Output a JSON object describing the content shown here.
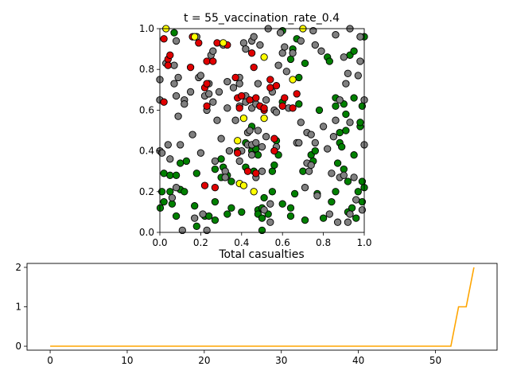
{
  "chart_data": [
    {
      "type": "scatter",
      "title": "t = 55_vaccination_rate_0.4",
      "xlim": [
        0,
        1
      ],
      "ylim": [
        0,
        1
      ],
      "x_ticks": [
        "0.0",
        "0.2",
        "0.4",
        "0.6",
        "0.8",
        "1.0"
      ],
      "y_ticks": [
        "0.0",
        "0.2",
        "0.4",
        "0.6",
        "0.8",
        "1.0"
      ],
      "grid": false,
      "colors": {
        "green": "#008000",
        "gray": "#808080",
        "red": "#e00000",
        "yellow": "#ffff00"
      },
      "points": {
        "green": [
          [
            0.002,
            0.12
          ],
          [
            0.01,
            0.2
          ],
          [
            0.02,
            0.15
          ],
          [
            0.02,
            0.29
          ],
          [
            0.05,
            0.2
          ],
          [
            0.06,
            0.14
          ],
          [
            0.05,
            0.28
          ],
          [
            0.08,
            0.28
          ],
          [
            0.08,
            0.08
          ],
          [
            0.1,
            0.34
          ],
          [
            0.1,
            0.21
          ],
          [
            0.12,
            0.2
          ],
          [
            0.13,
            0.35
          ],
          [
            0.17,
            0.13
          ],
          [
            0.18,
            0.29
          ],
          [
            0.18,
            0.03
          ],
          [
            0.22,
            0.08
          ],
          [
            0.24,
            0.08
          ],
          [
            0.27,
            0.15
          ],
          [
            0.27,
            0.31
          ],
          [
            0.27,
            0.06
          ],
          [
            0.3,
            0.36
          ],
          [
            0.3,
            0.27
          ],
          [
            0.31,
            0.32
          ],
          [
            0.33,
            0.28
          ],
          [
            0.33,
            0.09
          ],
          [
            0.35,
            0.25
          ],
          [
            0.35,
            0.12
          ],
          [
            0.38,
            0.4
          ],
          [
            0.4,
            0.1
          ],
          [
            0.42,
            0.44
          ],
          [
            0.42,
            0.32
          ],
          [
            0.45,
            0.52
          ],
          [
            0.45,
            0.4
          ],
          [
            0.46,
            0.3
          ],
          [
            0.47,
            0.41
          ],
          [
            0.48,
            0.11
          ],
          [
            0.48,
            0.09
          ],
          [
            0.48,
            0.38
          ],
          [
            0.5,
            0.07
          ],
          [
            0.5,
            0.12
          ],
          [
            0.5,
            0.01
          ],
          [
            0.51,
            0.17
          ],
          [
            0.53,
            0.09
          ],
          [
            0.55,
            0.2
          ],
          [
            0.55,
            0.3
          ],
          [
            0.56,
            0.33
          ],
          [
            0.57,
            0.45
          ],
          [
            0.58,
            0.38
          ],
          [
            0.6,
            0.64
          ],
          [
            0.6,
            0.99
          ],
          [
            0.6,
            0.14
          ],
          [
            0.64,
            0.08
          ],
          [
            0.64,
            0.12
          ],
          [
            0.64,
            0.85
          ],
          [
            0.65,
            0.9
          ],
          [
            0.66,
            0.19
          ],
          [
            0.67,
            0.95
          ],
          [
            0.68,
            0.63
          ],
          [
            0.68,
            0.76
          ],
          [
            0.7,
            0.3
          ],
          [
            0.71,
            0.06
          ],
          [
            0.71,
            0.83
          ],
          [
            0.74,
            0.38
          ],
          [
            0.75,
            0.35
          ],
          [
            0.76,
            0.4
          ],
          [
            0.77,
            0.19
          ],
          [
            0.78,
            0.6
          ],
          [
            0.8,
            0.07
          ],
          [
            0.82,
            0.86
          ],
          [
            0.83,
            0.84
          ],
          [
            0.84,
            0.15
          ],
          [
            0.86,
            0.66
          ],
          [
            0.86,
            0.62
          ],
          [
            0.86,
            0.2
          ],
          [
            0.87,
            0.34
          ],
          [
            0.88,
            0.44
          ],
          [
            0.88,
            0.49
          ],
          [
            0.89,
            0.42
          ],
          [
            0.9,
            0.31
          ],
          [
            0.9,
            0.63
          ],
          [
            0.91,
            0.58
          ],
          [
            0.91,
            0.5
          ],
          [
            0.92,
            0.25
          ],
          [
            0.92,
            0.1
          ],
          [
            0.93,
            0.87
          ],
          [
            0.94,
            0.12
          ],
          [
            0.95,
            0.66
          ],
          [
            0.95,
            0.38
          ],
          [
            0.95,
            0.89
          ],
          [
            0.96,
            0.07
          ],
          [
            0.97,
            0.2
          ],
          [
            0.98,
            0.52
          ],
          [
            0.98,
            0.54
          ],
          [
            0.99,
            0.15
          ],
          [
            0.99,
            0.62
          ],
          [
            0.99,
            0.25
          ],
          [
            1.0,
            0.22
          ],
          [
            1.0,
            0.96
          ],
          [
            0.07,
            0.98
          ]
        ],
        "gray": [
          [
            0.0,
            0.75
          ],
          [
            0.0,
            0.4
          ],
          [
            0.0,
            0.65
          ],
          [
            0.01,
            0.39
          ],
          [
            0.03,
            0.83
          ],
          [
            0.04,
            0.43
          ],
          [
            0.05,
            0.36
          ],
          [
            0.06,
            0.17
          ],
          [
            0.07,
            0.73
          ],
          [
            0.07,
            0.82
          ],
          [
            0.08,
            0.94
          ],
          [
            0.08,
            0.67
          ],
          [
            0.08,
            0.22
          ],
          [
            0.09,
            0.76
          ],
          [
            0.09,
            0.57
          ],
          [
            0.1,
            0.43
          ],
          [
            0.11,
            0.01
          ],
          [
            0.12,
            0.65
          ],
          [
            0.12,
            0.63
          ],
          [
            0.15,
            0.69
          ],
          [
            0.16,
            0.48
          ],
          [
            0.17,
            0.07
          ],
          [
            0.18,
            0.96
          ],
          [
            0.19,
            0.76
          ],
          [
            0.2,
            0.77
          ],
          [
            0.2,
            0.39
          ],
          [
            0.21,
            0.09
          ],
          [
            0.22,
            0.67
          ],
          [
            0.23,
            0.01
          ],
          [
            0.23,
            0.6
          ],
          [
            0.24,
            0.68
          ],
          [
            0.24,
            0.73
          ],
          [
            0.25,
            0.87
          ],
          [
            0.26,
            0.89
          ],
          [
            0.26,
            0.64
          ],
          [
            0.27,
            0.35
          ],
          [
            0.28,
            0.55
          ],
          [
            0.29,
            0.69
          ],
          [
            0.3,
            0.46
          ],
          [
            0.31,
            0.92
          ],
          [
            0.32,
            0.3
          ],
          [
            0.32,
            0.27
          ],
          [
            0.33,
            0.74
          ],
          [
            0.33,
            0.61
          ],
          [
            0.34,
            0.4
          ],
          [
            0.36,
            0.71
          ],
          [
            0.37,
            0.55
          ],
          [
            0.39,
            0.76
          ],
          [
            0.39,
            0.73
          ],
          [
            0.39,
            0.62
          ],
          [
            0.39,
            0.35
          ],
          [
            0.4,
            0.4
          ],
          [
            0.41,
            0.93
          ],
          [
            0.42,
            0.67
          ],
          [
            0.42,
            0.64
          ],
          [
            0.42,
            0.9
          ],
          [
            0.43,
            0.43
          ],
          [
            0.43,
            0.49
          ],
          [
            0.44,
            0.5
          ],
          [
            0.45,
            0.43
          ],
          [
            0.45,
            0.61
          ],
          [
            0.45,
            0.94
          ],
          [
            0.45,
            0.38
          ],
          [
            0.46,
            0.96
          ],
          [
            0.47,
            0.44
          ],
          [
            0.47,
            0.63
          ],
          [
            0.47,
            0.27
          ],
          [
            0.48,
            0.73
          ],
          [
            0.48,
            0.5
          ],
          [
            0.49,
            0.92
          ],
          [
            0.5,
            0.42
          ],
          [
            0.5,
            0.3
          ],
          [
            0.51,
            0.11
          ],
          [
            0.52,
            0.65
          ],
          [
            0.52,
            0.47
          ],
          [
            0.53,
            1.0
          ],
          [
            0.54,
            0.05
          ],
          [
            0.54,
            0.14
          ],
          [
            0.55,
            0.69
          ],
          [
            0.56,
            0.6
          ],
          [
            0.57,
            0.59
          ],
          [
            0.57,
            0.42
          ],
          [
            0.58,
            0.82
          ],
          [
            0.59,
            0.98
          ],
          [
            0.6,
            0.88
          ],
          [
            0.61,
            0.91
          ],
          [
            0.62,
            0.79
          ],
          [
            0.63,
            0.61
          ],
          [
            0.65,
            0.88
          ],
          [
            0.67,
            0.44
          ],
          [
            0.68,
            0.44
          ],
          [
            0.69,
            0.54
          ],
          [
            0.69,
            0.94
          ],
          [
            0.71,
            0.22
          ],
          [
            0.72,
            0.49
          ],
          [
            0.72,
            0.34
          ],
          [
            0.73,
            0.3
          ],
          [
            0.74,
            0.33
          ],
          [
            0.74,
            0.48
          ],
          [
            0.75,
            0.99
          ],
          [
            0.76,
            0.92
          ],
          [
            0.76,
            0.44
          ],
          [
            0.77,
            0.18
          ],
          [
            0.79,
            0.89
          ],
          [
            0.8,
            0.52
          ],
          [
            0.82,
            0.41
          ],
          [
            0.83,
            0.09
          ],
          [
            0.84,
            0.29
          ],
          [
            0.85,
            0.47
          ],
          [
            0.86,
            0.97
          ],
          [
            0.87,
            0.05
          ],
          [
            0.88,
            0.27
          ],
          [
            0.88,
            0.65
          ],
          [
            0.9,
            0.28
          ],
          [
            0.9,
            0.86
          ],
          [
            0.91,
            0.73
          ],
          [
            0.92,
            0.78
          ],
          [
            0.92,
            0.05
          ],
          [
            0.93,
            0.09
          ],
          [
            0.93,
            0.54
          ],
          [
            0.95,
            0.27
          ],
          [
            0.96,
            0.16
          ],
          [
            0.97,
            0.77
          ],
          [
            0.98,
            0.96
          ],
          [
            0.98,
            0.84
          ],
          [
            0.99,
            0.11
          ],
          [
            1.0,
            0.43
          ],
          [
            1.0,
            0.65
          ],
          [
            0.86,
            0.55
          ],
          [
            0.93,
            1.0
          ]
        ],
        "red": [
          [
            0.02,
            0.95
          ],
          [
            0.02,
            0.64
          ],
          [
            0.04,
            0.85
          ],
          [
            0.04,
            0.82
          ],
          [
            0.05,
            0.87
          ],
          [
            0.15,
            0.81
          ],
          [
            0.16,
            0.96
          ],
          [
            0.19,
            0.93
          ],
          [
            0.22,
            0.23
          ],
          [
            0.22,
            0.71
          ],
          [
            0.23,
            0.84
          ],
          [
            0.23,
            0.62
          ],
          [
            0.23,
            0.73
          ],
          [
            0.26,
            0.84
          ],
          [
            0.27,
            0.22
          ],
          [
            0.28,
            0.93
          ],
          [
            0.33,
            0.92
          ],
          [
            0.37,
            0.76
          ],
          [
            0.38,
            0.39
          ],
          [
            0.38,
            0.66
          ],
          [
            0.39,
            0.61
          ],
          [
            0.43,
            0.3
          ],
          [
            0.44,
            0.65
          ],
          [
            0.45,
            0.88
          ],
          [
            0.46,
            0.81
          ],
          [
            0.47,
            0.29
          ],
          [
            0.47,
            0.66
          ],
          [
            0.49,
            0.62
          ],
          [
            0.51,
            0.6
          ],
          [
            0.54,
            0.75
          ],
          [
            0.54,
            0.71
          ],
          [
            0.56,
            0.46
          ],
          [
            0.56,
            0.4
          ],
          [
            0.57,
            0.72
          ],
          [
            0.6,
            0.62
          ],
          [
            0.61,
            0.66
          ],
          [
            0.65,
            0.61
          ],
          [
            0.67,
            0.68
          ],
          [
            0.51,
            0.61
          ],
          [
            0.4,
            0.67
          ]
        ],
        "yellow": [
          [
            0.03,
            1.0
          ],
          [
            0.17,
            0.96
          ],
          [
            0.31,
            0.93
          ],
          [
            0.38,
            0.45
          ],
          [
            0.39,
            0.24
          ],
          [
            0.41,
            0.23
          ],
          [
            0.41,
            0.56
          ],
          [
            0.46,
            0.2
          ],
          [
            0.51,
            0.56
          ],
          [
            0.51,
            0.86
          ],
          [
            0.65,
            0.75
          ],
          [
            0.7,
            1.0
          ]
        ]
      }
    },
    {
      "type": "line",
      "title": "Total casualties",
      "xlim": [
        -3,
        58
      ],
      "ylim": [
        -0.1,
        2.1
      ],
      "x_ticks": [
        0,
        10,
        20,
        30,
        40,
        50
      ],
      "y_ticks": [
        0,
        1,
        2
      ],
      "color": "#ffa500",
      "x": [
        0,
        1,
        2,
        3,
        4,
        5,
        6,
        7,
        8,
        9,
        10,
        11,
        12,
        13,
        14,
        15,
        16,
        17,
        18,
        19,
        20,
        21,
        22,
        23,
        24,
        25,
        26,
        27,
        28,
        29,
        30,
        31,
        32,
        33,
        34,
        35,
        36,
        37,
        38,
        39,
        40,
        41,
        42,
        43,
        44,
        45,
        46,
        47,
        48,
        49,
        50,
        51,
        52,
        53,
        54,
        55
      ],
      "y": [
        0,
        0,
        0,
        0,
        0,
        0,
        0,
        0,
        0,
        0,
        0,
        0,
        0,
        0,
        0,
        0,
        0,
        0,
        0,
        0,
        0,
        0,
        0,
        0,
        0,
        0,
        0,
        0,
        0,
        0,
        0,
        0,
        0,
        0,
        0,
        0,
        0,
        0,
        0,
        0,
        0,
        0,
        0,
        0,
        0,
        0,
        0,
        0,
        0,
        0,
        0,
        0,
        0,
        1,
        1,
        2
      ]
    }
  ]
}
